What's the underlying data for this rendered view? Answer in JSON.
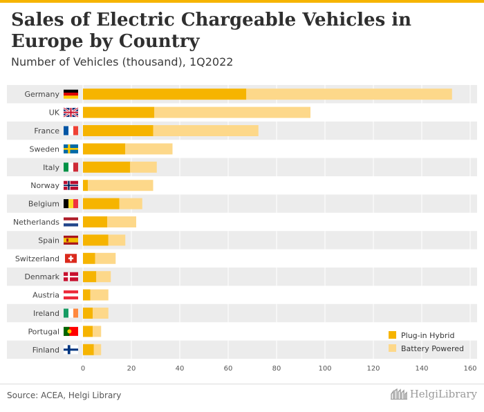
{
  "header": {
    "title": "Sales of Electric Chargeable Vehicles in Europe by Country",
    "subtitle": "Number of Vehicles (thousand), 1Q2022"
  },
  "footer": {
    "source": "Source: ACEA, Helgi Library",
    "logo_text": "HelgiLibrary"
  },
  "colors": {
    "plugin_hybrid": "#f6b400",
    "battery_powered": "#fdd88a",
    "row_shade": "#ececec"
  },
  "chart_data": {
    "type": "bar",
    "orientation": "horizontal",
    "stacked": true,
    "categories": [
      "Germany",
      "UK",
      "France",
      "Sweden",
      "Italy",
      "Norway",
      "Belgium",
      "Netherlands",
      "Spain",
      "Switzerland",
      "Denmark",
      "Austria",
      "Ireland",
      "Portugal",
      "Finland"
    ],
    "flags": [
      "flag-germany",
      "flag-uk",
      "flag-france",
      "flag-sweden",
      "flag-italy",
      "flag-norway",
      "flag-belgium",
      "flag-netherlands",
      "flag-spain",
      "flag-switzerland",
      "flag-denmark",
      "flag-austria",
      "flag-ireland",
      "flag-portugal",
      "flag-finland"
    ],
    "series": [
      {
        "name": "Plug-in Hybrid",
        "values": [
          67.5,
          29.5,
          29.0,
          17.5,
          19.5,
          2.0,
          15.0,
          10.0,
          10.5,
          5.0,
          5.5,
          3.0,
          4.0,
          4.0,
          4.5
        ]
      },
      {
        "name": "Battery Powered",
        "values": [
          85.0,
          64.5,
          43.5,
          19.5,
          11.0,
          27.0,
          9.5,
          12.0,
          7.0,
          8.5,
          6.0,
          7.5,
          6.5,
          3.5,
          3.0
        ]
      }
    ],
    "xlim": [
      0,
      160
    ],
    "xticks": [
      0,
      20,
      40,
      60,
      80,
      100,
      120,
      140,
      160
    ],
    "legend_position": "bottom-right",
    "grid": "vertical"
  }
}
